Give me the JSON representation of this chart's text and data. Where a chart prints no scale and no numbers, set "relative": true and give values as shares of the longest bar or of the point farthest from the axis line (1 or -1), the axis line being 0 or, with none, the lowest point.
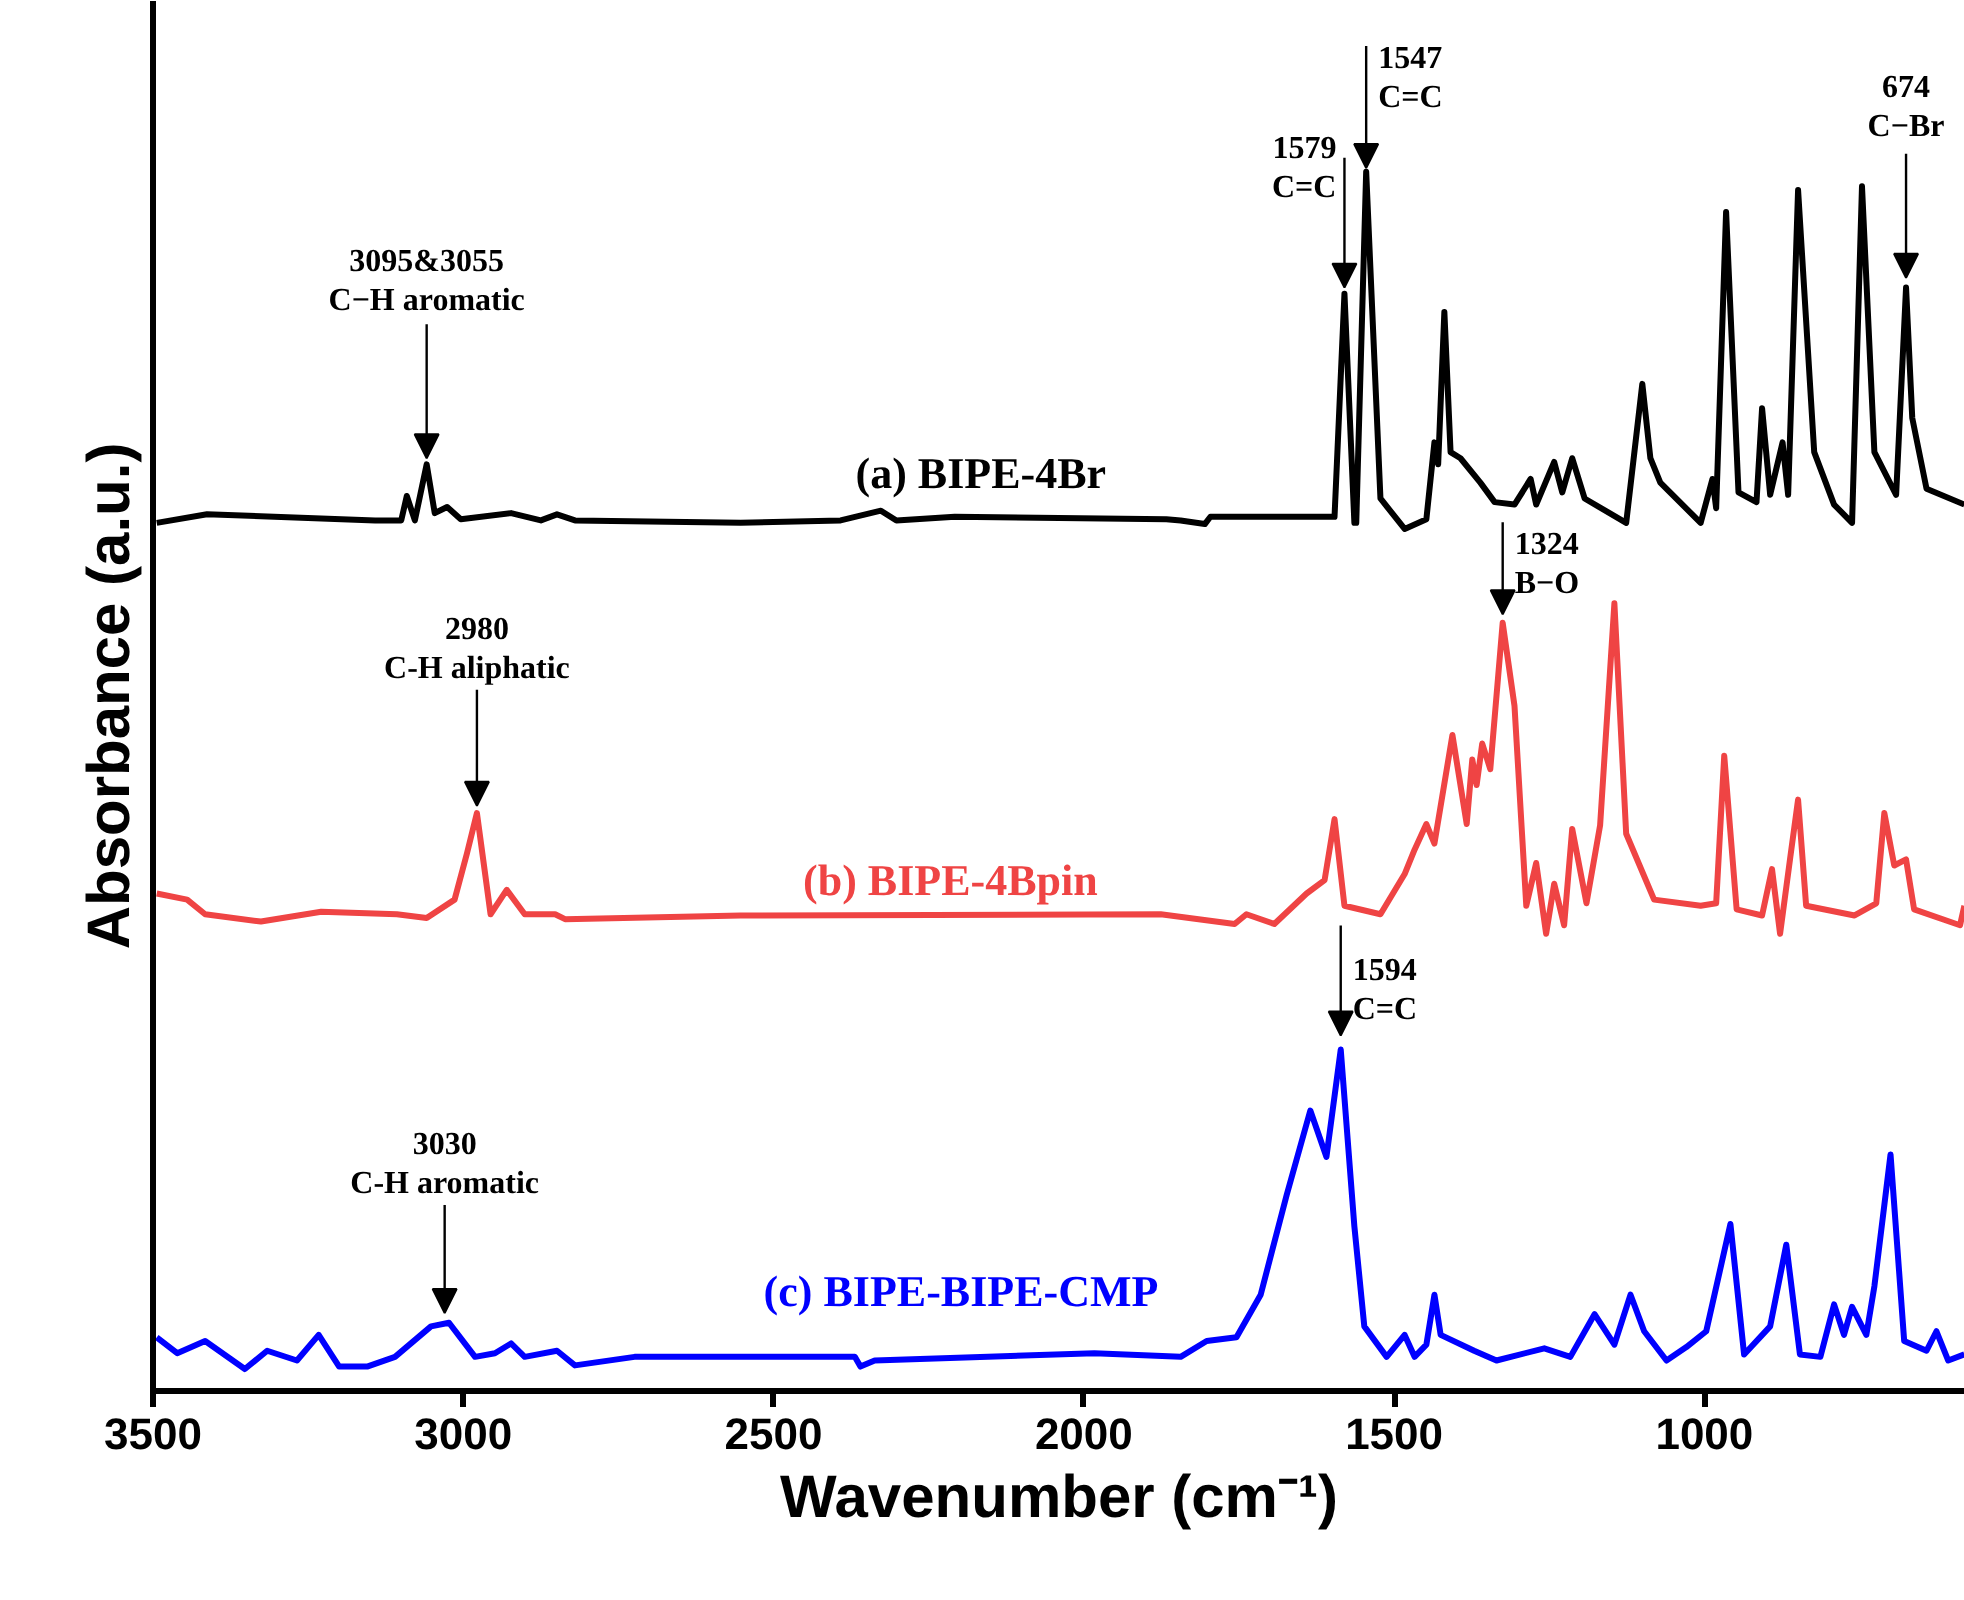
{
  "chart_data": {
    "type": "line",
    "relative": true,
    "xlabel": "Wavenumber (cm⁻¹)",
    "ylabel": "Absorbance (a.u.)",
    "xlim": [
      3500,
      580
    ],
    "xticks": [
      3500,
      3000,
      2500,
      2000,
      1500,
      1000
    ],
    "grid": false,
    "legend": false,
    "marker": "none",
    "line_style": "solid",
    "series": [
      {
        "name": "(a) BIPE-4Br",
        "color": "#000000",
        "x": [
          3494,
          3413,
          3142,
          3100,
          3091,
          3078,
          3059,
          3046,
          3026,
          3004,
          2923,
          2875,
          2849,
          2820,
          2553,
          2392,
          2327,
          2302,
          2208,
          1867,
          1844,
          1805,
          1796,
          1596,
          1580,
          1564,
          1561,
          1545,
          1522,
          1483,
          1448,
          1435,
          1429,
          1419,
          1409,
          1393,
          1361,
          1338,
          1306,
          1280,
          1271,
          1242,
          1229,
          1213,
          1193,
          1126,
          1100,
          1087,
          1071,
          1006,
          987,
          981,
          965,
          945,
          916,
          907,
          894,
          874,
          865,
          849,
          823,
          791,
          762,
          746,
          726,
          691,
          675,
          665,
          642,
          581
        ],
        "values": [
          0.712,
          0.719,
          0.714,
          0.714,
          0.734,
          0.714,
          0.76,
          0.72,
          0.725,
          0.715,
          0.72,
          0.714,
          0.719,
          0.714,
          0.712,
          0.714,
          0.722,
          0.714,
          0.717,
          0.715,
          0.714,
          0.711,
          0.717,
          0.717,
          0.9,
          0.712,
          0.712,
          1.0,
          0.732,
          0.707,
          0.715,
          0.778,
          0.76,
          0.885,
          0.77,
          0.765,
          0.745,
          0.729,
          0.727,
          0.748,
          0.727,
          0.762,
          0.737,
          0.765,
          0.732,
          0.712,
          0.826,
          0.765,
          0.745,
          0.712,
          0.748,
          0.724,
          0.967,
          0.737,
          0.729,
          0.806,
          0.735,
          0.778,
          0.735,
          0.985,
          0.77,
          0.727,
          0.712,
          0.988,
          0.77,
          0.735,
          0.905,
          0.798,
          0.74,
          0.727
        ]
      },
      {
        "name": "(b) BIPE-4Bpin",
        "color": "#ef4444",
        "x": [
          3494,
          3445,
          3416,
          3326,
          3229,
          3107,
          3059,
          3014,
          2994,
          2978,
          2956,
          2930,
          2901,
          2852,
          2836,
          2553,
          1876,
          1757,
          1738,
          1693,
          1641,
          1612,
          1596,
          1580,
          1522,
          1483,
          1467,
          1448,
          1435,
          1406,
          1383,
          1374,
          1367,
          1358,
          1345,
          1325,
          1306,
          1287,
          1271,
          1255,
          1242,
          1226,
          1213,
          1190,
          1168,
          1145,
          1126,
          1081,
          1006,
          981,
          968,
          948,
          907,
          891,
          878,
          862,
          849,
          836,
          758,
          723,
          710,
          694,
          675,
          662,
          588,
          581
        ],
        "values": [
          0.408,
          0.403,
          0.391,
          0.385,
          0.393,
          0.391,
          0.388,
          0.403,
          0.441,
          0.474,
          0.391,
          0.411,
          0.391,
          0.391,
          0.387,
          0.39,
          0.391,
          0.383,
          0.391,
          0.383,
          0.408,
          0.419,
          0.469,
          0.398,
          0.391,
          0.424,
          0.444,
          0.465,
          0.449,
          0.538,
          0.465,
          0.518,
          0.497,
          0.531,
          0.51,
          0.63,
          0.562,
          0.398,
          0.433,
          0.375,
          0.416,
          0.382,
          0.461,
          0.4,
          0.464,
          0.646,
          0.457,
          0.403,
          0.398,
          0.4,
          0.521,
          0.395,
          0.39,
          0.428,
          0.375,
          0.436,
          0.485,
          0.398,
          0.39,
          0.4,
          0.474,
          0.431,
          0.436,
          0.395,
          0.382,
          0.398
        ]
      },
      {
        "name": "(c) BIPE-BIPE-CMP",
        "color": "#0000ff",
        "x": [
          3494,
          3461,
          3416,
          3352,
          3316,
          3268,
          3233,
          3200,
          3155,
          3110,
          3052,
          3023,
          2981,
          2949,
          2923,
          2901,
          2849,
          2820,
          2724,
          2553,
          2369,
          2360,
          2337,
          1983,
          1844,
          1802,
          1754,
          1715,
          1673,
          1635,
          1609,
          1586,
          1564,
          1548,
          1512,
          1483,
          1467,
          1448,
          1435,
          1425,
          1371,
          1335,
          1258,
          1216,
          1177,
          1145,
          1119,
          1097,
          1061,
          1029,
          997,
          958,
          936,
          894,
          868,
          846,
          813,
          791,
          775,
          762,
          739,
          726,
          700,
          678,
          642,
          626,
          607,
          581
        ],
        "values": [
          0.044,
          0.031,
          0.041,
          0.018,
          0.033,
          0.025,
          0.046,
          0.02,
          0.02,
          0.028,
          0.053,
          0.056,
          0.028,
          0.031,
          0.039,
          0.028,
          0.033,
          0.021,
          0.028,
          0.028,
          0.028,
          0.02,
          0.025,
          0.031,
          0.028,
          0.041,
          0.044,
          0.079,
          0.161,
          0.23,
          0.192,
          0.28,
          0.135,
          0.053,
          0.028,
          0.046,
          0.028,
          0.038,
          0.079,
          0.046,
          0.033,
          0.025,
          0.035,
          0.028,
          0.063,
          0.038,
          0.079,
          0.049,
          0.025,
          0.036,
          0.049,
          0.137,
          0.03,
          0.053,
          0.12,
          0.03,
          0.028,
          0.071,
          0.046,
          0.069,
          0.046,
          0.086,
          0.194,
          0.041,
          0.033,
          0.049,
          0.025,
          0.03
        ]
      }
    ],
    "annotations": [
      {
        "text": "3095&3055\nC−H aromatic",
        "x": 3059,
        "y": 0.76
      },
      {
        "text": "1579\nC=C",
        "x": 1580,
        "y": 0.9
      },
      {
        "text": "1547\nC=C",
        "x": 1545,
        "y": 1.003
      },
      {
        "text": "674\nC−Br",
        "x": 675,
        "y": 0.913
      },
      {
        "text": "2980\nC-H aliphatic",
        "x": 2978,
        "y": 0.48
      },
      {
        "text": "1324\nB−O",
        "x": 1325,
        "y": 0.637
      },
      {
        "text": "1594\nC=C",
        "x": 1586,
        "y": 0.28
      },
      {
        "text": "3030\nC-H aromatic",
        "x": 3030,
        "y": 0.064
      }
    ]
  }
}
